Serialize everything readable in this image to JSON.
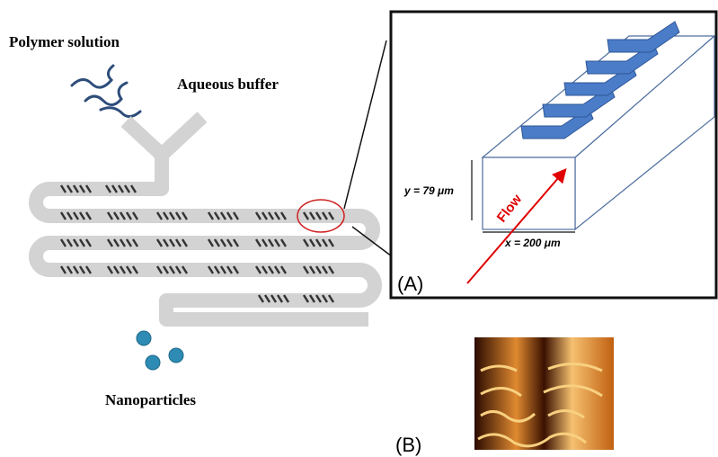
{
  "labels": {
    "polymer": "Polymer solution",
    "buffer": "Aqueous buffer",
    "particles": "Nanoparticles"
  },
  "inset": {
    "y_dim": "y = 79 μm",
    "x_dim": "x = 200 μm",
    "flow": "Flow",
    "panel": "(A)"
  },
  "image_panel": "(B)"
}
